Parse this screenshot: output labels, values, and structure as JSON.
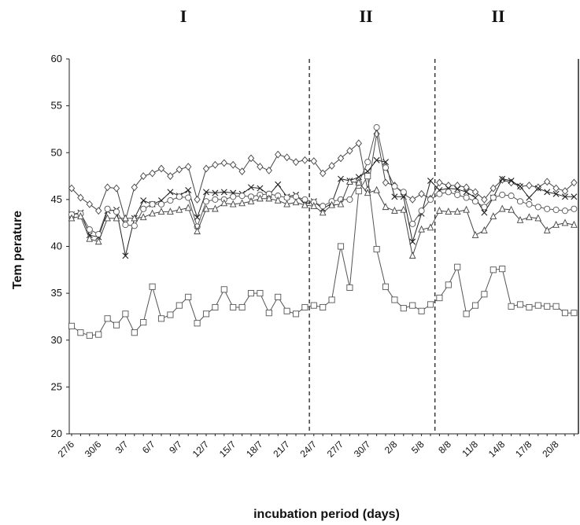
{
  "chart_data": {
    "type": "line",
    "title": "",
    "xlabel": "incubation period (days)",
    "ylabel": "Tem perature",
    "ylim": [
      20,
      60
    ],
    "yticks": [
      20,
      25,
      30,
      35,
      40,
      45,
      50,
      55,
      60
    ],
    "x_tick_labels": [
      "27/6",
      "30/6",
      "3/7",
      "6/7",
      "9/7",
      "12/7",
      "15/7",
      "18/7",
      "21/7",
      "24/7",
      "27/7",
      "30/7",
      "2/8",
      "5/8",
      "8/8",
      "11/8",
      "14/8",
      "17/8",
      "20/8"
    ],
    "x": [
      "27/6",
      "28/6",
      "29/6",
      "30/6",
      "1/7",
      "2/7",
      "3/7",
      "4/7",
      "5/7",
      "6/7",
      "7/7",
      "8/7",
      "9/7",
      "10/7",
      "11/7",
      "12/7",
      "13/7",
      "14/7",
      "15/7",
      "16/7",
      "17/7",
      "18/7",
      "19/7",
      "20/7",
      "21/7",
      "22/7",
      "23/7",
      "24/7",
      "25/7",
      "26/7",
      "27/7",
      "28/7",
      "29/7",
      "30/7",
      "31/7",
      "1/8",
      "2/8",
      "3/8",
      "4/8",
      "5/8",
      "6/8",
      "7/8",
      "8/8",
      "9/8",
      "10/8",
      "11/8",
      "12/8",
      "13/8",
      "14/8",
      "15/8",
      "16/8",
      "17/8",
      "18/8",
      "19/8",
      "20/8",
      "21/8",
      "22/8"
    ],
    "period_labels": [
      "I",
      "II",
      "II"
    ],
    "period_dividers_after": [
      "23/7",
      "6/8"
    ],
    "grid": false,
    "series": [
      {
        "marker": "diamond",
        "color": "#444444",
        "values": [
          46.2,
          45.2,
          44.5,
          43.8,
          46.3,
          46.2,
          42.8,
          46.3,
          47.5,
          47.8,
          48.3,
          47.5,
          48.2,
          48.5,
          45.0,
          48.3,
          48.7,
          48.9,
          48.7,
          48.0,
          49.4,
          48.5,
          48.1,
          49.8,
          49.5,
          49.0,
          49.2,
          49.1,
          47.8,
          48.6,
          49.4,
          50.2,
          51.0,
          46.0,
          52.0,
          46.8,
          46.5,
          45.6,
          45.0,
          45.6,
          45.1,
          46.8,
          46.5,
          46.5,
          46.3,
          45.8,
          45.0,
          46.2,
          47.1,
          46.8,
          46.4,
          46.5,
          46.3,
          46.9,
          46.2,
          45.9,
          46.8
        ]
      },
      {
        "marker": "x",
        "color": "#222222",
        "values": [
          43.4,
          43.6,
          41.2,
          41.0,
          43.8,
          43.9,
          39.0,
          43.0,
          44.9,
          44.5,
          44.9,
          45.8,
          45.4,
          46.0,
          43.1,
          45.8,
          45.7,
          45.8,
          45.7,
          45.6,
          46.3,
          46.2,
          45.5,
          46.6,
          45.3,
          45.5,
          44.5,
          44.8,
          44.0,
          44.6,
          47.2,
          47.0,
          47.4,
          48.0,
          49.2,
          49.0,
          45.3,
          45.3,
          40.5,
          43.5,
          47.0,
          46.0,
          46.2,
          46.1,
          45.8,
          45.2,
          43.6,
          45.2,
          47.2,
          47.0,
          46.4,
          45.2,
          46.2,
          45.8,
          45.6,
          45.3,
          45.3
        ]
      },
      {
        "marker": "circle",
        "color": "#555555",
        "values": [
          43.4,
          43.5,
          41.8,
          41.3,
          44.0,
          43.7,
          42.3,
          42.2,
          44.0,
          44.5,
          44.5,
          44.9,
          45.3,
          45.2,
          42.1,
          44.8,
          45.0,
          45.0,
          45.3,
          45.4,
          45.3,
          45.5,
          45.6,
          45.4,
          45.2,
          45.3,
          45.0,
          44.7,
          44.3,
          44.8,
          45.0,
          45.0,
          46.8,
          49.0,
          52.7,
          48.4,
          46.4,
          45.8,
          42.4,
          43.8,
          45.0,
          45.6,
          45.8,
          45.5,
          45.2,
          44.8,
          44.2,
          45.2,
          45.5,
          45.4,
          44.8,
          44.5,
          44.2,
          44.0,
          43.9,
          43.8,
          44.0
        ]
      },
      {
        "marker": "triangle",
        "color": "#444444",
        "values": [
          43.0,
          43.2,
          40.8,
          40.5,
          43.0,
          43.0,
          43.0,
          43.0,
          43.1,
          43.5,
          43.7,
          43.7,
          43.9,
          44.1,
          41.6,
          44.0,
          44.0,
          44.6,
          44.5,
          44.6,
          44.8,
          45.1,
          45.1,
          44.9,
          44.5,
          44.7,
          44.4,
          44.3,
          43.6,
          44.4,
          44.5,
          46.9,
          46.8,
          45.7,
          46.0,
          44.2,
          43.8,
          43.9,
          39.0,
          41.8,
          42.0,
          43.8,
          43.7,
          43.7,
          43.9,
          41.2,
          41.7,
          43.2,
          44.0,
          43.9,
          42.8,
          43.1,
          43.0,
          41.7,
          42.3,
          42.5,
          42.3
        ]
      },
      {
        "marker": "square",
        "color": "#555555",
        "values": [
          31.5,
          30.8,
          30.5,
          30.6,
          32.3,
          31.6,
          32.8,
          30.8,
          31.9,
          35.7,
          32.3,
          32.7,
          33.7,
          34.6,
          31.8,
          32.8,
          33.5,
          35.4,
          33.5,
          33.5,
          35.0,
          35.0,
          32.9,
          34.6,
          33.1,
          32.8,
          33.5,
          33.7,
          33.5,
          34.3,
          40.0,
          35.6,
          45.9,
          47.5,
          39.7,
          35.7,
          34.3,
          33.4,
          33.7,
          33.1,
          33.8,
          34.5,
          35.9,
          37.8,
          32.8,
          33.7,
          34.9,
          37.5,
          37.6,
          33.6,
          33.8,
          33.5,
          33.7,
          33.6,
          33.6,
          32.9,
          32.9
        ]
      }
    ]
  }
}
